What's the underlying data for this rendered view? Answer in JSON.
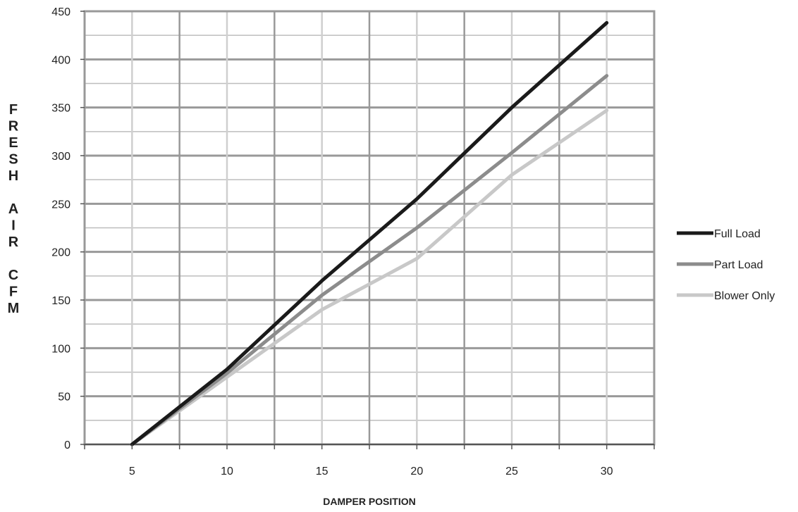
{
  "chart_data": {
    "type": "line",
    "title": "",
    "xlabel": "DAMPER POSITION",
    "ylabel": "FRESH AIR CFM",
    "ylabel_lines": [
      "FRESH",
      "AIR",
      "CFM"
    ],
    "x": [
      5,
      10,
      15,
      20,
      25,
      30
    ],
    "x_tick_labels": [
      "5",
      "10",
      "15",
      "20",
      "25",
      "30"
    ],
    "y_tick_labels": [
      "0",
      "50",
      "100",
      "150",
      "200",
      "250",
      "300",
      "350",
      "400",
      "450"
    ],
    "ylim": [
      0,
      450
    ],
    "grid": true,
    "legend_position": "right",
    "series": [
      {
        "name": "Full Load",
        "color": "#1a1a1a",
        "values": [
          0,
          78,
          170,
          255,
          350,
          438
        ]
      },
      {
        "name": "Part Load",
        "color": "#8c8c8c",
        "values": [
          0,
          74,
          155,
          225,
          303,
          383
        ]
      },
      {
        "name": "Blower Only",
        "color": "#c8c8c8",
        "values": [
          0,
          70,
          140,
          193,
          280,
          347
        ]
      }
    ]
  }
}
